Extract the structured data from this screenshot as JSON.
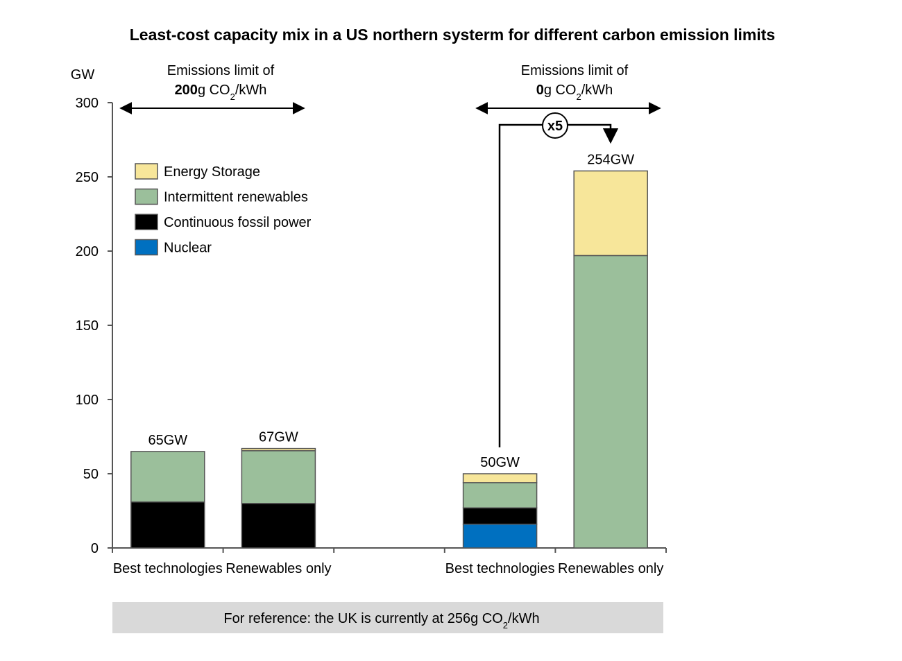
{
  "chart_data": {
    "type": "stacked_bar",
    "title": "Least-cost capacity mix in a US northern systerm for different carbon emission limits",
    "y_label": "GW",
    "categories": [
      "Best technologies",
      "Renewables only",
      null,
      "Best technologies",
      "Renewables only"
    ],
    "series": [
      {
        "name": "Nuclear",
        "color": "#0070c0",
        "values": [
          0,
          0,
          null,
          16,
          0
        ]
      },
      {
        "name": "Continuous fossil power",
        "color": "#000000",
        "values": [
          31,
          30,
          null,
          11,
          0
        ]
      },
      {
        "name": "Intermittent renewables",
        "color": "#9bbf9b",
        "values": [
          34,
          35.5,
          null,
          17,
          197
        ]
      },
      {
        "name": "Energy Storage",
        "color": "#f7e69a",
        "values": [
          0,
          1.5,
          null,
          6,
          57
        ]
      }
    ],
    "bar_labels": [
      "65GW",
      "67GW",
      null,
      "50GW",
      "254GW"
    ],
    "ylim": [
      0,
      300
    ],
    "yticks": [
      0,
      50,
      100,
      150,
      200,
      250,
      300
    ],
    "grid": false,
    "groups": [
      {
        "line1": "Emissions limit of",
        "value": "200",
        "unit": "g CO",
        "sub": "2",
        "unit_end": "/kWh"
      },
      {
        "line1": "Emissions limit of",
        "value": "0",
        "unit": "g CO",
        "sub": "2",
        "unit_end": "/kWh"
      }
    ],
    "multiplier": "x5",
    "reference": {
      "text": "For reference: the UK is currently at 256g CO",
      "sub": "2",
      "text_end": "/kWh"
    }
  }
}
